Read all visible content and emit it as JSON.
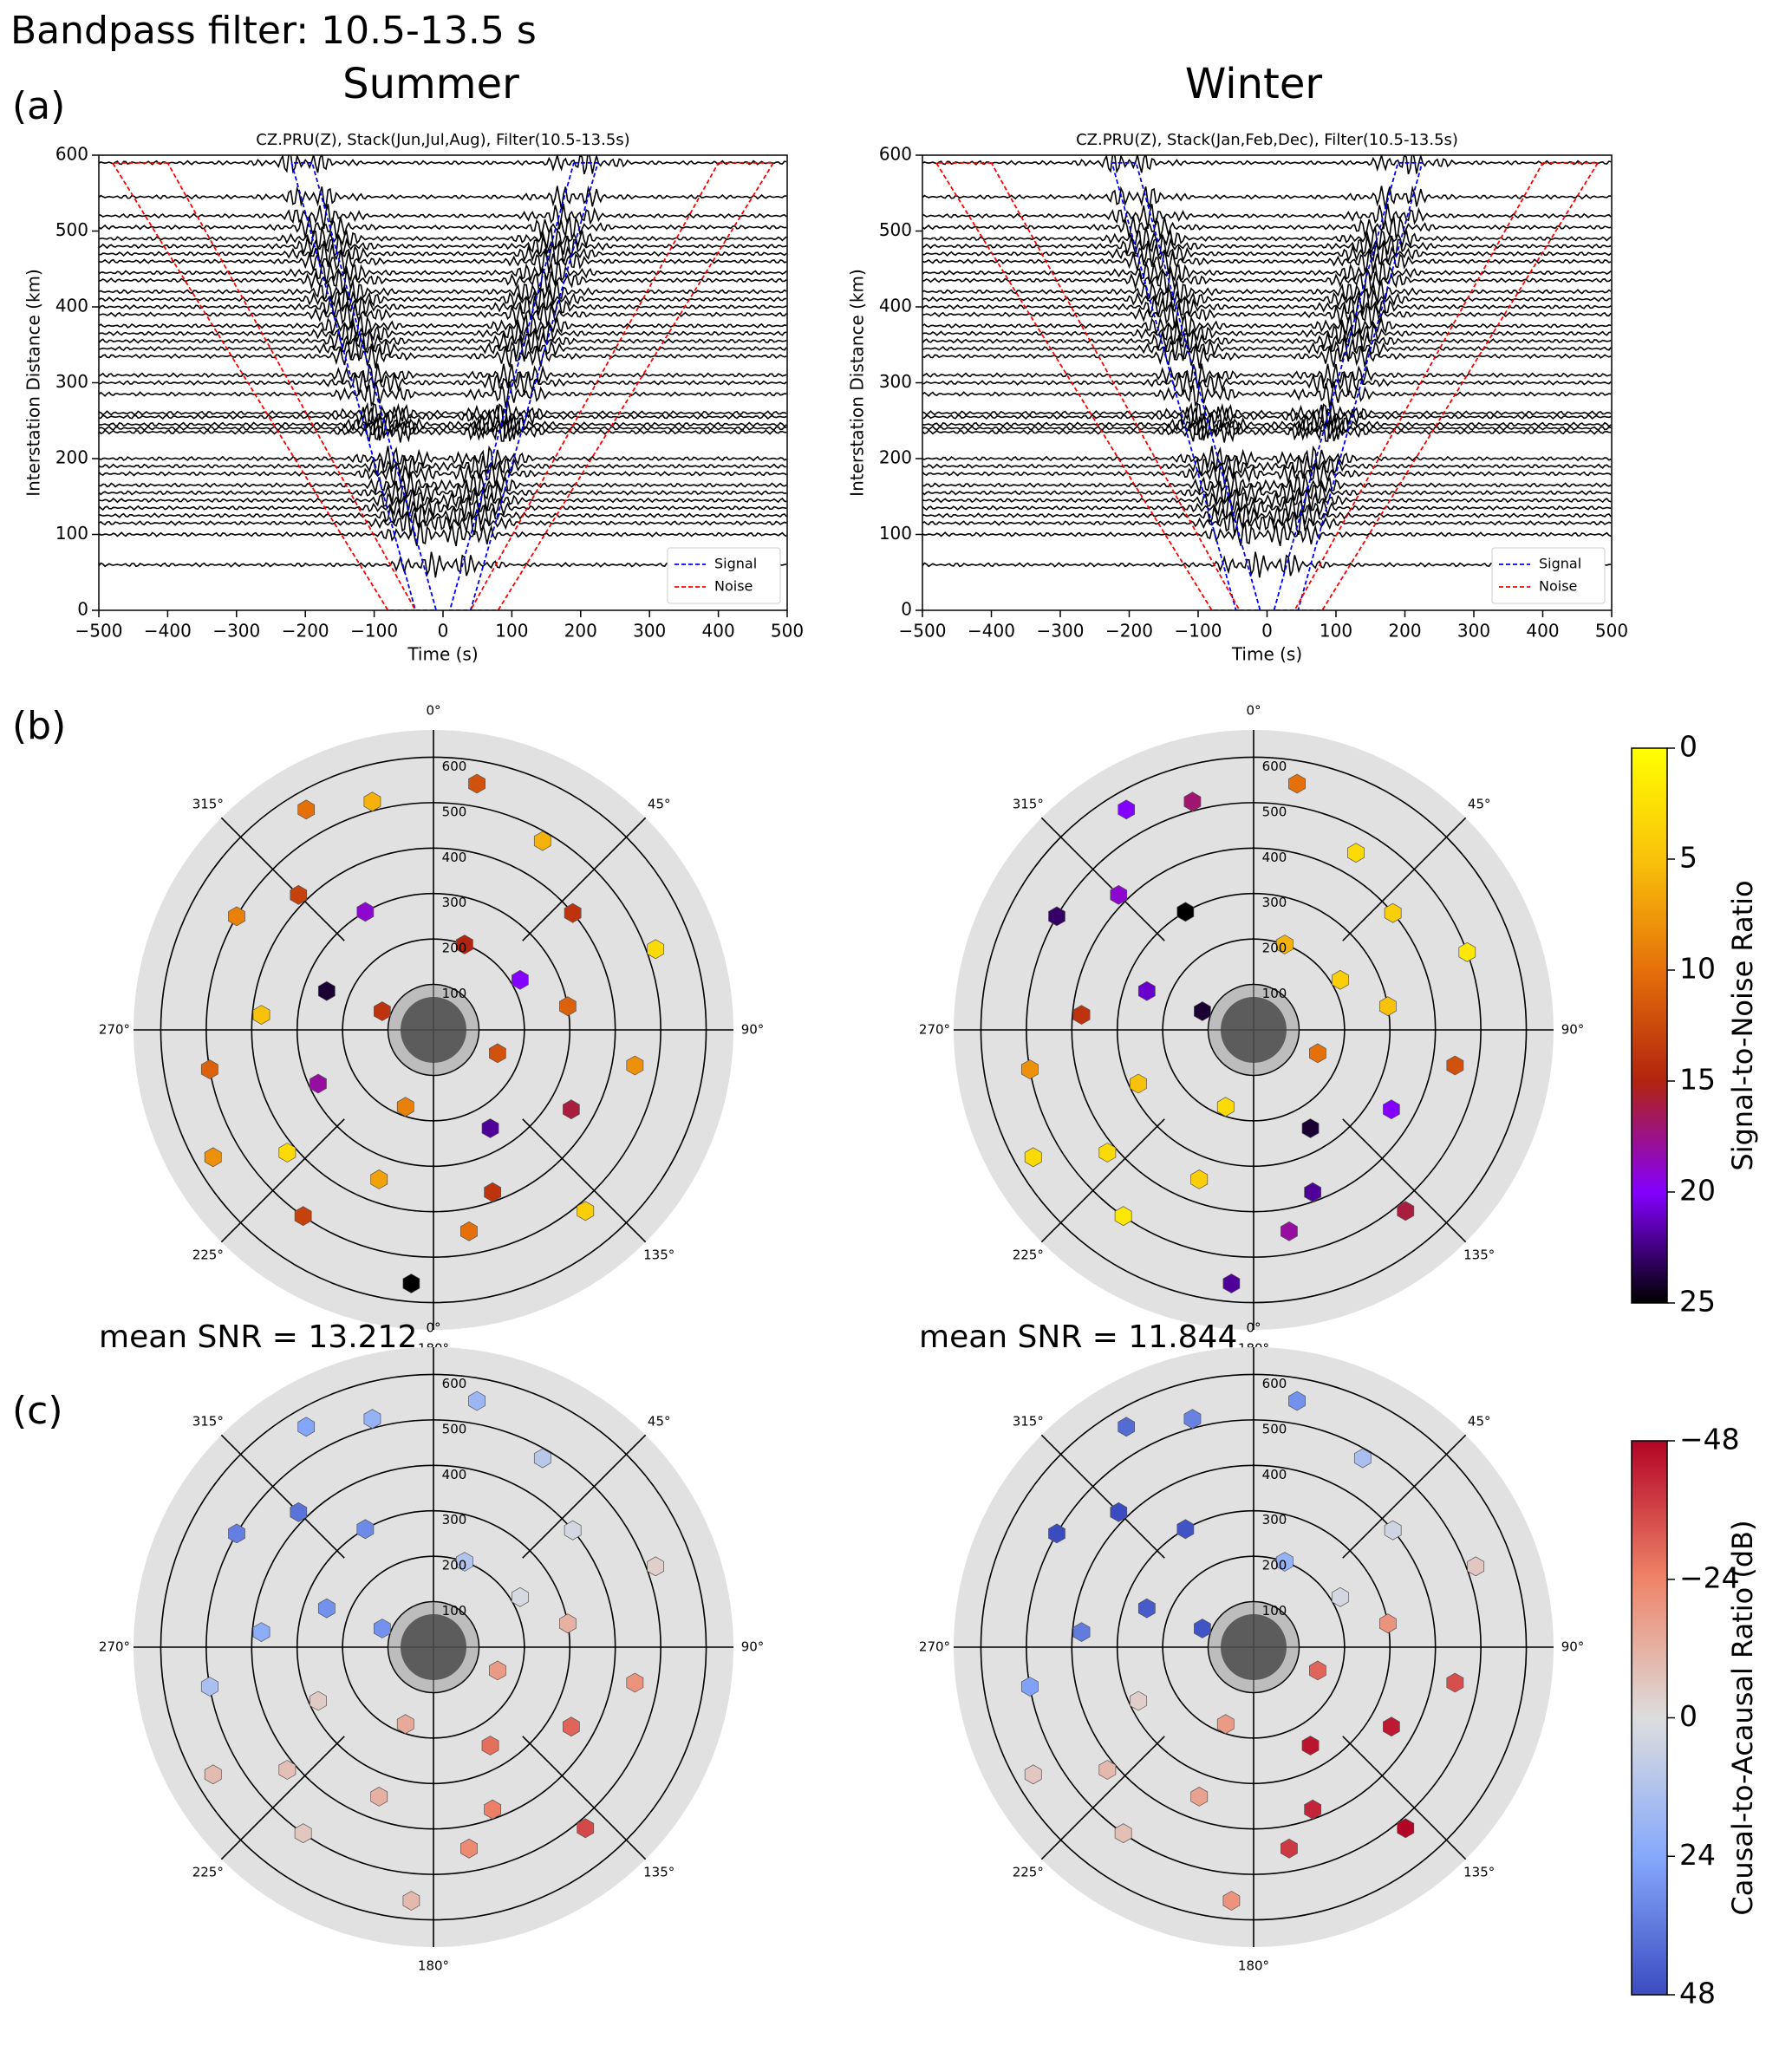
{
  "title": "Bandpass filter: 10.5-13.5 s",
  "panels": [
    "(a)",
    "(b)",
    "(c)"
  ],
  "chart_data": [
    {
      "type": "line",
      "column_title": "Summer",
      "title": "CZ.PRU(Z), Stack(Jun,Jul,Aug), Filter(10.5-13.5s)",
      "xlabel": "Time (s)",
      "ylabel": "Interstation Distance (km)",
      "xlim": [
        -500,
        500
      ],
      "ylim": [
        0,
        600
      ],
      "xticks": [
        {
          "value": -500,
          "label": "−500"
        },
        {
          "value": -400,
          "label": "−400"
        },
        {
          "value": -300,
          "label": "−300"
        },
        {
          "value": -200,
          "label": "−200"
        },
        {
          "value": -100,
          "label": "−100"
        },
        0,
        100,
        200,
        300,
        400,
        500
      ],
      "yticks": [
        0,
        100,
        200,
        300,
        400,
        500,
        600
      ],
      "traces": [
        60,
        100,
        115,
        125,
        135,
        145,
        155,
        165,
        180,
        190,
        200,
        235,
        240,
        245,
        255,
        260,
        285,
        300,
        310,
        335,
        345,
        355,
        365,
        375,
        390,
        400,
        410,
        420,
        435,
        445,
        460,
        470,
        480,
        490,
        505,
        520,
        545,
        590
      ],
      "trace_color": "#000000",
      "windows": [
        {
          "name": "Signal",
          "color": "#0000ff",
          "x": [
            -190,
            -220,
            -40,
            -10,
            -190,
            null,
            190,
            225,
            40,
            10,
            190
          ],
          "y": [
            590,
            590,
            0,
            0,
            590,
            null,
            590,
            590,
            0,
            0,
            590
          ]
        },
        {
          "name": "Noise",
          "color": "#ff0000",
          "x": [
            -400,
            -480,
            -80,
            -40,
            -400,
            null,
            400,
            480,
            80,
            40,
            400
          ],
          "y": [
            590,
            590,
            0,
            0,
            590,
            null,
            590,
            590,
            0,
            0,
            590
          ]
        }
      ],
      "legend": "lower right"
    },
    {
      "type": "line",
      "column_title": "Winter",
      "title": "CZ.PRU(Z), Stack(Jan,Feb,Dec), Filter(10.5-13.5s)",
      "xlabel": "Time (s)",
      "ylabel": "Interstation Distance (km)",
      "xlim": [
        -500,
        500
      ],
      "ylim": [
        0,
        600
      ],
      "xticks": [
        {
          "value": -500,
          "label": "−500"
        },
        {
          "value": -400,
          "label": "−400"
        },
        {
          "value": -300,
          "label": "−300"
        },
        {
          "value": -200,
          "label": "−200"
        },
        {
          "value": -100,
          "label": "−100"
        },
        0,
        100,
        200,
        300,
        400,
        500
      ],
      "yticks": [
        0,
        100,
        200,
        300,
        400,
        500,
        600
      ],
      "traces": [
        60,
        100,
        115,
        125,
        135,
        145,
        155,
        165,
        180,
        190,
        200,
        235,
        240,
        245,
        255,
        260,
        285,
        300,
        310,
        335,
        345,
        355,
        365,
        375,
        390,
        400,
        410,
        420,
        435,
        445,
        460,
        470,
        480,
        490,
        505,
        520,
        545,
        590
      ],
      "trace_color": "#000000",
      "windows": [
        {
          "name": "Signal",
          "color": "#0000ff",
          "x": [
            -190,
            -225,
            -45,
            -10,
            -190,
            null,
            190,
            225,
            45,
            10,
            190
          ],
          "y": [
            590,
            590,
            0,
            0,
            590,
            null,
            590,
            590,
            0,
            0,
            590
          ]
        },
        {
          "name": "Noise",
          "color": "#ff0000",
          "x": [
            -400,
            -480,
            -80,
            -40,
            -400,
            null,
            400,
            480,
            80,
            40,
            400
          ],
          "y": [
            590,
            590,
            0,
            0,
            590,
            null,
            590,
            590,
            0,
            0,
            590
          ]
        }
      ],
      "legend": "lower right"
    },
    {
      "type": "polar-hexbin",
      "annotation": "mean SNR = 13.212",
      "rlim": [
        0,
        660
      ],
      "rticks": [
        100,
        200,
        300,
        400,
        500,
        600
      ],
      "thetaticks": [
        {
          "value": 0,
          "label": "0°"
        },
        {
          "value": 45,
          "label": "45°"
        },
        {
          "value": 90,
          "label": "90°"
        },
        {
          "value": 135,
          "label": "135°"
        },
        {
          "value": 180,
          "label": "180°"
        },
        {
          "value": 225,
          "label": "225°"
        },
        {
          "value": 270,
          "label": "270°"
        },
        {
          "value": 315,
          "label": "315°"
        }
      ],
      "theta": [
        10,
        30,
        50,
        70,
        80,
        100,
        120,
        140,
        150,
        170,
        185,
        200,
        215,
        230,
        245,
        260,
        275,
        290,
        300,
        315,
        330,
        345,
        20,
        110,
        200,
        290,
        60,
        160,
        240,
        330
      ],
      "r": [
        550,
        480,
        400,
        520,
        300,
        450,
        350,
        520,
        250,
        450,
        560,
        350,
        500,
        420,
        280,
        500,
        380,
        250,
        500,
        420,
        300,
        520,
        200,
        150,
        180,
        120,
        220,
        380,
        560,
        560
      ],
      "values": [
        12,
        6,
        14,
        3,
        11,
        8,
        16,
        4,
        22,
        10,
        25,
        7,
        13,
        3,
        18,
        11,
        5,
        24,
        9,
        13,
        19,
        6,
        15,
        12,
        9,
        14,
        20,
        14,
        8,
        10
      ]
    },
    {
      "type": "polar-hexbin",
      "annotation": "mean SNR = 11.844",
      "rlim": [
        0,
        660
      ],
      "rticks": [
        100,
        200,
        300,
        400,
        500,
        600
      ],
      "thetaticks": [
        {
          "value": 0,
          "label": "0°"
        },
        {
          "value": 45,
          "label": "45°"
        },
        {
          "value": 90,
          "label": "90°"
        },
        {
          "value": 135,
          "label": "135°"
        },
        {
          "value": 180,
          "label": "180°"
        },
        {
          "value": 225,
          "label": "225°"
        },
        {
          "value": 270,
          "label": "270°"
        },
        {
          "value": 315,
          "label": "315°"
        }
      ],
      "theta": [
        10,
        30,
        50,
        70,
        80,
        100,
        120,
        140,
        150,
        170,
        185,
        200,
        215,
        230,
        245,
        260,
        275,
        290,
        300,
        315,
        330,
        345,
        20,
        110,
        200,
        290,
        60,
        160,
        240,
        330
      ],
      "r": [
        550,
        450,
        400,
        500,
        300,
        450,
        350,
        520,
        250,
        450,
        560,
        350,
        500,
        420,
        280,
        500,
        380,
        250,
        500,
        420,
        300,
        520,
        200,
        150,
        180,
        120,
        220,
        380,
        560,
        560
      ],
      "values": [
        10,
        3,
        4,
        2,
        5,
        12,
        20,
        16,
        24,
        18,
        22,
        4,
        2,
        3,
        5,
        8,
        14,
        21,
        23,
        19,
        25,
        17,
        6,
        10,
        3,
        24,
        4,
        22,
        3,
        20
      ]
    },
    {
      "type": "polar-hexbin",
      "rlim": [
        0,
        660
      ],
      "rticks": [
        100,
        200,
        300,
        400,
        500,
        600
      ],
      "thetaticks": [
        {
          "value": 0,
          "label": "0°"
        },
        {
          "value": 45,
          "label": "45°"
        },
        {
          "value": 90,
          "label": "90°"
        },
        {
          "value": 135,
          "label": "135°"
        },
        {
          "value": 180,
          "label": "180°"
        },
        {
          "value": 225,
          "label": "225°"
        },
        {
          "value": 270,
          "label": "270°"
        },
        {
          "value": 315,
          "label": "315°"
        }
      ],
      "theta": [
        10,
        30,
        50,
        70,
        80,
        100,
        120,
        140,
        150,
        170,
        185,
        200,
        215,
        230,
        245,
        260,
        275,
        290,
        300,
        315,
        330,
        345,
        20,
        110,
        200,
        290,
        60,
        160,
        240,
        330
      ],
      "r": [
        550,
        480,
        400,
        520,
        300,
        450,
        350,
        520,
        250,
        450,
        560,
        350,
        500,
        420,
        280,
        500,
        380,
        250,
        500,
        420,
        300,
        520,
        200,
        150,
        180,
        120,
        220,
        380,
        560,
        560
      ],
      "values": [
        18,
        10,
        3,
        -4,
        -12,
        -20,
        -30,
        -35,
        -28,
        -22,
        -10,
        -12,
        -6,
        -8,
        -5,
        14,
        22,
        30,
        35,
        38,
        32,
        20,
        12,
        -18,
        -14,
        30,
        2,
        -25,
        -9,
        25
      ]
    },
    {
      "type": "polar-hexbin",
      "rlim": [
        0,
        660
      ],
      "rticks": [
        100,
        200,
        300,
        400,
        500,
        600
      ],
      "thetaticks": [
        {
          "value": 0,
          "label": "0°"
        },
        {
          "value": 45,
          "label": "45°"
        },
        {
          "value": 90,
          "label": "90°"
        },
        {
          "value": 135,
          "label": "135°"
        },
        {
          "value": 180,
          "label": "180°"
        },
        {
          "value": 225,
          "label": "225°"
        },
        {
          "value": 270,
          "label": "270°"
        },
        {
          "value": 315,
          "label": "315°"
        }
      ],
      "theta": [
        10,
        30,
        50,
        70,
        80,
        100,
        120,
        140,
        150,
        170,
        185,
        200,
        215,
        230,
        245,
        260,
        275,
        290,
        300,
        315,
        330,
        345,
        20,
        110,
        200,
        290,
        60,
        160,
        240,
        330
      ],
      "r": [
        550,
        480,
        400,
        520,
        300,
        450,
        350,
        520,
        250,
        450,
        560,
        350,
        500,
        420,
        280,
        500,
        380,
        250,
        500,
        420,
        300,
        520,
        200,
        150,
        180,
        120,
        220,
        380,
        560,
        560
      ],
      "values": [
        30,
        14,
        4,
        -6,
        -20,
        -34,
        -44,
        -48,
        -45,
        -38,
        -20,
        -16,
        -8,
        -10,
        -4,
        26,
        36,
        44,
        48,
        48,
        46,
        34,
        20,
        -30,
        -18,
        46,
        3,
        -42,
        -6,
        40
      ]
    },
    {
      "type": "colorbar",
      "label": "Signal-to-Noise Ratio",
      "ylim": [
        0,
        25
      ],
      "yticks": [
        0,
        5,
        10,
        15,
        20,
        25
      ],
      "inverted": true,
      "colors": [
        "#ffff00",
        "#f9c20a",
        "#e5700a",
        "#b2240f",
        "#8400ff",
        "#000000"
      ]
    },
    {
      "type": "colorbar",
      "label": "Causal-to-Acausal Ratio (dB)",
      "ylim": [
        -48,
        48
      ],
      "yticks": [
        {
          "value": -48,
          "label": "−48"
        },
        {
          "value": -24,
          "label": "−24"
        },
        0,
        24,
        48
      ],
      "inverted": true,
      "colors": [
        "#b40426",
        "#ee8468",
        "#dddddd",
        "#86a9fc",
        "#3b4cc0"
      ]
    }
  ]
}
